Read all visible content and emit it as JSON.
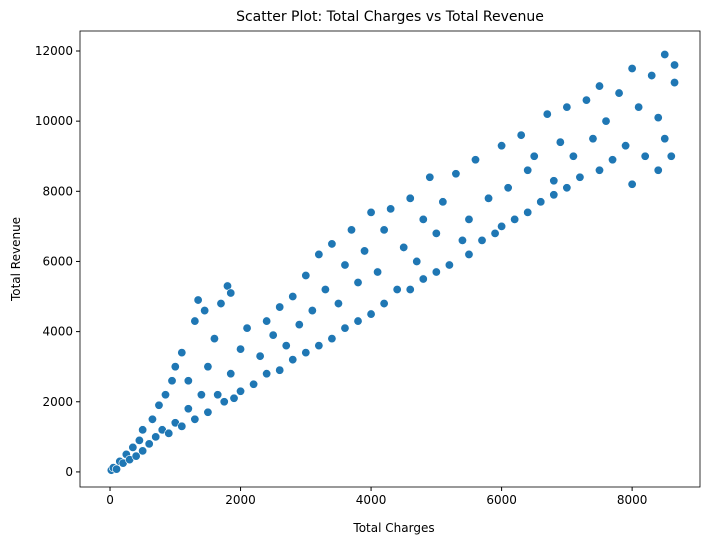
{
  "chart_data": {
    "type": "scatter",
    "title": "Scatter Plot: Total Charges vs Total Revenue",
    "x_label": "Total Charges",
    "y_label": "Total Revenue",
    "color": "#1f77b4",
    "xlim": [
      -460,
      9040
    ],
    "ylim": [
      -430,
      12570
    ],
    "xticks": [
      0,
      2000,
      4000,
      6000,
      8000
    ],
    "yticks": [
      0,
      2000,
      4000,
      6000,
      8000,
      10000,
      12000
    ],
    "x": [
      20,
      50,
      100,
      150,
      200,
      250,
      300,
      350,
      400,
      450,
      500,
      500,
      600,
      650,
      700,
      750,
      800,
      850,
      900,
      950,
      1000,
      1000,
      1100,
      1100,
      1200,
      1200,
      1300,
      1300,
      1350,
      1400,
      1450,
      1500,
      1500,
      1600,
      1650,
      1700,
      1750,
      1800,
      1850,
      1850,
      1900,
      2000,
      2000,
      2100,
      2200,
      2300,
      2400,
      2400,
      2500,
      2600,
      2600,
      2700,
      2800,
      2800,
      2900,
      3000,
      3000,
      3100,
      3200,
      3200,
      3300,
      3400,
      3400,
      3500,
      3600,
      3600,
      3700,
      3800,
      3800,
      3900,
      4000,
      4000,
      4100,
      4200,
      4200,
      4300,
      4400,
      4500,
      4600,
      4600,
      4700,
      4800,
      4800,
      4900,
      5000,
      5000,
      5100,
      5200,
      5300,
      5400,
      5500,
      5500,
      5600,
      5700,
      5800,
      5900,
      6000,
      6000,
      6100,
      6200,
      6300,
      6400,
      6400,
      6500,
      6600,
      6700,
      6800,
      6800,
      6900,
      7000,
      7000,
      7100,
      7200,
      7300,
      7400,
      7500,
      7500,
      7600,
      7700,
      7800,
      7900,
      8000,
      8000,
      8100,
      8200,
      8300,
      8400,
      8400,
      8500,
      8500,
      8600,
      8650,
      8650
    ],
    "y": [
      50,
      120,
      80,
      300,
      250,
      500,
      350,
      700,
      450,
      900,
      600,
      1200,
      800,
      1500,
      1000,
      1900,
      1200,
      2200,
      1100,
      2600,
      1400,
      3000,
      1300,
      3400,
      1800,
      2600,
      4300,
      1500,
      4900,
      2200,
      4600,
      3000,
      1700,
      3800,
      2200,
      4800,
      2000,
      5300,
      5100,
      2800,
      2100,
      3500,
      2300,
      4100,
      2500,
      3300,
      4300,
      2800,
      3900,
      4700,
      2900,
      3600,
      5000,
      3200,
      4200,
      5600,
      3400,
      4600,
      6200,
      3600,
      5200,
      6500,
      3800,
      4800,
      5900,
      4100,
      6900,
      4300,
      5400,
      6300,
      7400,
      4500,
      5700,
      6900,
      4800,
      7500,
      5200,
      6400,
      7800,
      5200,
      6000,
      7200,
      5500,
      8400,
      5700,
      6800,
      7700,
      5900,
      8500,
      6600,
      7200,
      6200,
      8900,
      6600,
      7800,
      6800,
      9300,
      7000,
      8100,
      7200,
      9600,
      8600,
      7400,
      9000,
      7700,
      10200,
      8300,
      7900,
      9400,
      10400,
      8100,
      9000,
      8400,
      10600,
      9500,
      8600,
      11000,
      10000,
      8900,
      10800,
      9300,
      11500,
      8200,
      10400,
      9000,
      11300,
      8600,
      10100,
      11900,
      9500,
      9000,
      11100,
      11600
    ]
  }
}
